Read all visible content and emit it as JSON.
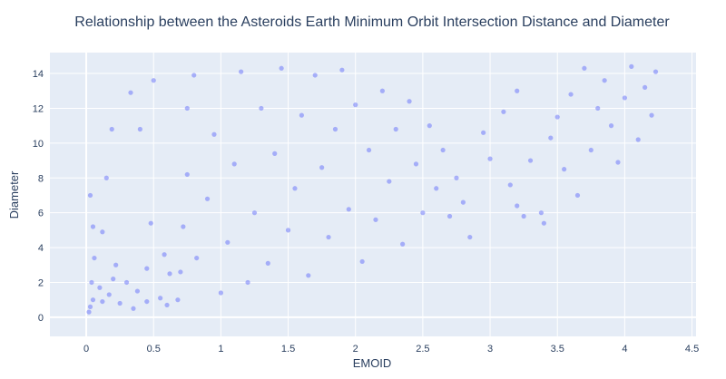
{
  "chart_data": {
    "type": "scatter",
    "title": "Relationship between the Asteroids Earth Minimum Orbit Intersection Distance and Diameter",
    "xlabel": "EMOID",
    "ylabel": "Diameter",
    "xlim": [
      -0.27,
      4.53
    ],
    "ylim": [
      -1.1,
      15.2
    ],
    "x_ticks": [
      0,
      0.5,
      1,
      1.5,
      2,
      2.5,
      3,
      3.5,
      4,
      4.5
    ],
    "x_tick_labels": [
      "0",
      "0.5",
      "1",
      "1.5",
      "2",
      "2.5",
      "3",
      "3.5",
      "4",
      "4.5"
    ],
    "y_ticks": [
      0,
      2,
      4,
      6,
      8,
      10,
      12,
      14
    ],
    "y_tick_labels": [
      "0",
      "2",
      "4",
      "6",
      "8",
      "10",
      "12",
      "14"
    ],
    "grid": true,
    "marker_color": "#636efa",
    "plot_bgcolor": "#e5ecf6",
    "series": [
      {
        "points": [
          [
            0.02,
            0.3
          ],
          [
            0.03,
            0.6
          ],
          [
            0.05,
            1.0
          ],
          [
            0.04,
            2.0
          ],
          [
            0.06,
            3.4
          ],
          [
            0.05,
            5.2
          ],
          [
            0.03,
            7.0
          ],
          [
            0.1,
            1.7
          ],
          [
            0.12,
            0.9
          ],
          [
            0.12,
            4.9
          ],
          [
            0.15,
            8.0
          ],
          [
            0.17,
            1.3
          ],
          [
            0.2,
            2.2
          ],
          [
            0.22,
            3.0
          ],
          [
            0.19,
            10.8
          ],
          [
            0.25,
            0.8
          ],
          [
            0.3,
            2.0
          ],
          [
            0.33,
            12.9
          ],
          [
            0.35,
            0.5
          ],
          [
            0.38,
            1.5
          ],
          [
            0.4,
            10.8
          ],
          [
            0.45,
            0.9
          ],
          [
            0.45,
            2.8
          ],
          [
            0.48,
            5.4
          ],
          [
            0.5,
            13.6
          ],
          [
            0.55,
            1.1
          ],
          [
            0.58,
            3.6
          ],
          [
            0.6,
            0.7
          ],
          [
            0.62,
            2.5
          ],
          [
            0.68,
            1.0
          ],
          [
            0.7,
            2.6
          ],
          [
            0.72,
            5.2
          ],
          [
            0.75,
            8.2
          ],
          [
            0.75,
            12.0
          ],
          [
            0.8,
            13.9
          ],
          [
            0.82,
            3.4
          ],
          [
            0.9,
            6.8
          ],
          [
            0.95,
            10.5
          ],
          [
            1.0,
            1.4
          ],
          [
            1.05,
            4.3
          ],
          [
            1.1,
            8.8
          ],
          [
            1.15,
            14.1
          ],
          [
            1.2,
            2.0
          ],
          [
            1.25,
            6.0
          ],
          [
            1.3,
            12.0
          ],
          [
            1.35,
            3.1
          ],
          [
            1.4,
            9.4
          ],
          [
            1.45,
            14.3
          ],
          [
            1.5,
            5.0
          ],
          [
            1.55,
            7.4
          ],
          [
            1.6,
            11.6
          ],
          [
            1.65,
            2.4
          ],
          [
            1.7,
            13.9
          ],
          [
            1.75,
            8.6
          ],
          [
            1.8,
            4.6
          ],
          [
            1.85,
            10.8
          ],
          [
            1.9,
            14.2
          ],
          [
            1.95,
            6.2
          ],
          [
            2.0,
            12.2
          ],
          [
            2.05,
            3.2
          ],
          [
            2.1,
            9.6
          ],
          [
            2.15,
            5.6
          ],
          [
            2.2,
            13.0
          ],
          [
            2.25,
            7.8
          ],
          [
            2.3,
            10.8
          ],
          [
            2.35,
            4.2
          ],
          [
            2.4,
            12.4
          ],
          [
            2.45,
            8.8
          ],
          [
            2.5,
            6.0
          ],
          [
            2.55,
            11.0
          ],
          [
            2.6,
            7.4
          ],
          [
            2.65,
            9.6
          ],
          [
            2.7,
            5.8
          ],
          [
            2.75,
            8.0
          ],
          [
            2.8,
            6.6
          ],
          [
            2.85,
            4.6
          ],
          [
            2.95,
            10.6
          ],
          [
            3.0,
            9.1
          ],
          [
            3.1,
            11.8
          ],
          [
            3.15,
            7.6
          ],
          [
            3.2,
            6.4
          ],
          [
            3.2,
            13.0
          ],
          [
            3.25,
            5.8
          ],
          [
            3.3,
            9.0
          ],
          [
            3.38,
            6.0
          ],
          [
            3.4,
            5.4
          ],
          [
            3.45,
            10.3
          ],
          [
            3.5,
            11.5
          ],
          [
            3.55,
            8.5
          ],
          [
            3.6,
            12.8
          ],
          [
            3.65,
            7.0
          ],
          [
            3.7,
            14.3
          ],
          [
            3.75,
            9.6
          ],
          [
            3.8,
            12.0
          ],
          [
            3.85,
            13.6
          ],
          [
            3.9,
            11.0
          ],
          [
            3.95,
            8.9
          ],
          [
            4.0,
            12.6
          ],
          [
            4.05,
            14.4
          ],
          [
            4.1,
            10.2
          ],
          [
            4.15,
            13.2
          ],
          [
            4.2,
            11.6
          ],
          [
            4.23,
            14.1
          ]
        ]
      }
    ]
  }
}
